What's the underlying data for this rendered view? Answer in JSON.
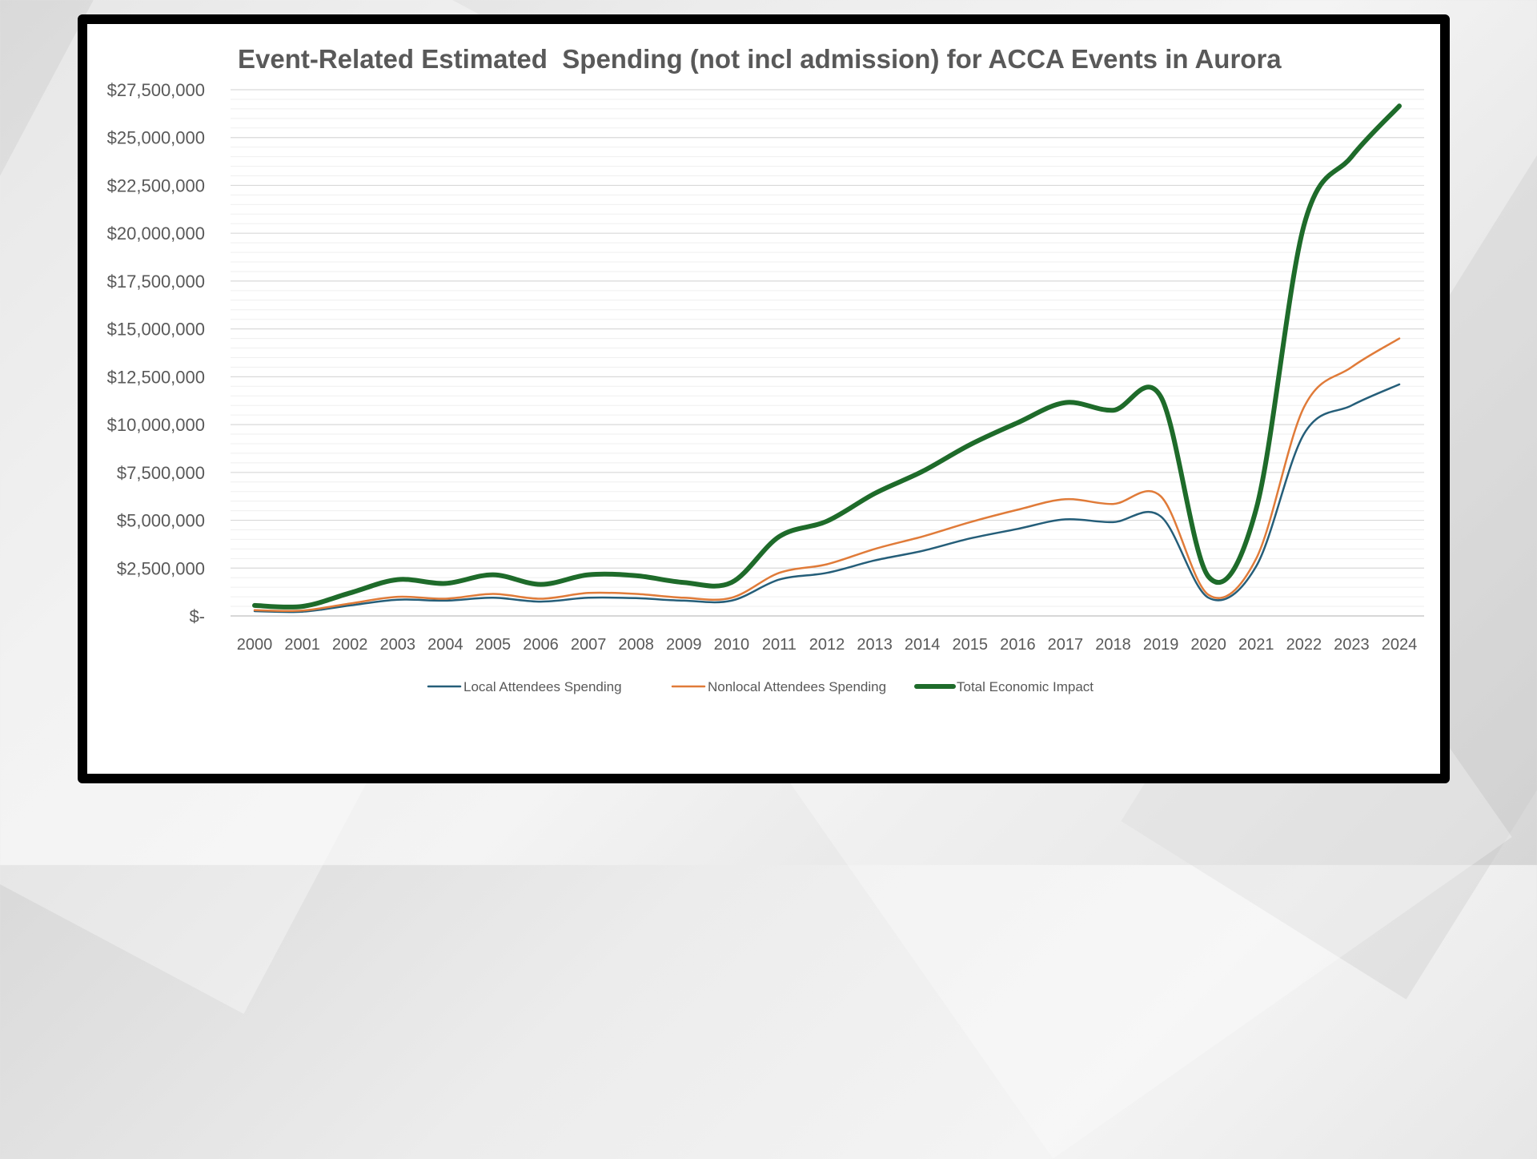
{
  "chart_data": {
    "type": "line",
    "title": "Event-Related Estimated  Spending (not incl admission) for ACCA Events in Aurora",
    "categories": [
      "2000",
      "2001",
      "2002",
      "2003",
      "2004",
      "2005",
      "2006",
      "2007",
      "2008",
      "2009",
      "2010",
      "2011",
      "2012",
      "2013",
      "2014",
      "2015",
      "2016",
      "2017",
      "2018",
      "2019",
      "2020",
      "2021",
      "2022",
      "2023",
      "2024"
    ],
    "ylim": [
      0,
      27500000
    ],
    "ytick_values": [
      0,
      2500000,
      5000000,
      7500000,
      10000000,
      12500000,
      15000000,
      17500000,
      20000000,
      22500000,
      25000000,
      27500000
    ],
    "ytick_labels": [
      "$-",
      "$2,500,000",
      "$5,000,000",
      "$7,500,000",
      "$10,000,000",
      "$12,500,000",
      "$15,000,000",
      "$17,500,000",
      "$20,000,000",
      "$22,500,000",
      "$25,000,000",
      "$27,500,000"
    ],
    "minor_grid_step": 500000,
    "grid": true,
    "legend_position": "bottom",
    "series": [
      {
        "name": "Local Attendees Spending",
        "color": "#255E79",
        "width": 2.5,
        "values": [
          250000,
          220000,
          550000,
          850000,
          800000,
          950000,
          750000,
          950000,
          930000,
          800000,
          800000,
          1900000,
          2250000,
          2900000,
          3400000,
          4050000,
          4550000,
          5050000,
          4900000,
          5200000,
          950000,
          2600000,
          9500000,
          11000000,
          12100000
        ]
      },
      {
        "name": "Nonlocal Attendees Spending",
        "color": "#E07B39",
        "width": 2.5,
        "values": [
          300000,
          280000,
          650000,
          1000000,
          900000,
          1150000,
          900000,
          1200000,
          1150000,
          950000,
          950000,
          2250000,
          2700000,
          3500000,
          4150000,
          4900000,
          5550000,
          6100000,
          5850000,
          6250000,
          1100000,
          3000000,
          10900000,
          13000000,
          14500000
        ]
      },
      {
        "name": "Total Economic Impact",
        "color": "#1E6B2A",
        "width": 6,
        "values": [
          550000,
          500000,
          1200000,
          1900000,
          1700000,
          2150000,
          1650000,
          2150000,
          2100000,
          1750000,
          1750000,
          4150000,
          4950000,
          6400000,
          7550000,
          8950000,
          10100000,
          11150000,
          10750000,
          11450000,
          2050000,
          5600000,
          20400000,
          24000000,
          26650000
        ]
      }
    ]
  }
}
